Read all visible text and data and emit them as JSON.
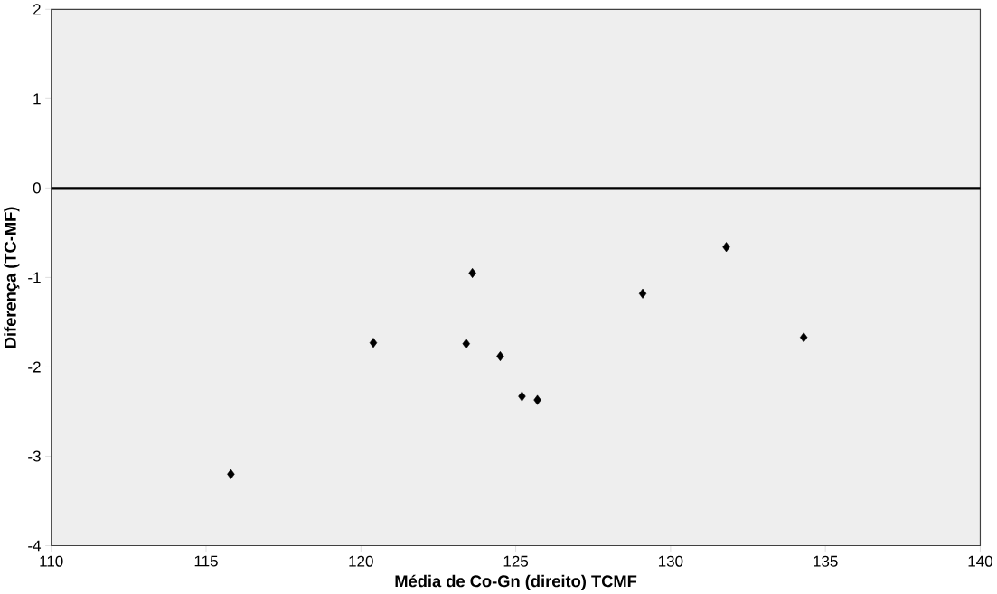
{
  "chart_data": {
    "type": "scatter",
    "xlabel": "Média de Co-Gn (direito) TCMF",
    "ylabel": "Diferença (TC-MF)",
    "x": [
      115.8,
      120.4,
      123.4,
      123.6,
      124.5,
      125.2,
      125.7,
      129.1,
      131.8,
      134.3
    ],
    "series": [
      {
        "color": "#000000",
        "values": [
          -3.2,
          -1.73,
          -1.74,
          -0.95,
          -1.88,
          -2.33,
          -2.37,
          -1.18,
          -0.66,
          -1.67
        ]
      }
    ],
    "xlim": [
      110,
      140
    ],
    "ylim": [
      -4,
      2
    ],
    "xticks": [
      110,
      115,
      120,
      125,
      130,
      135,
      140
    ],
    "yticks": [
      -4,
      -3,
      -2,
      -1,
      0,
      1,
      2
    ],
    "marker": "diamond",
    "ref_lines": [
      {
        "axis": "y",
        "value": 0,
        "color": "#000000"
      }
    ]
  }
}
